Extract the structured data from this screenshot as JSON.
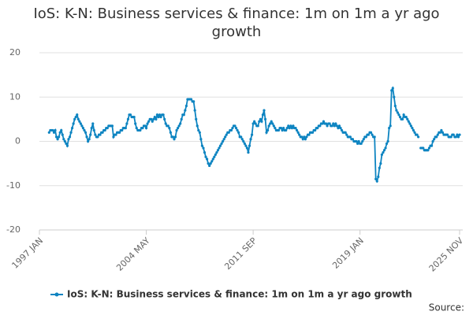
{
  "chart_data": {
    "type": "line",
    "title": "IoS: K-N: Business services & finance: 1m on 1m a yr ago growth",
    "source": "Source:",
    "categories": [
      "1997 JAN",
      null,
      null,
      null,
      null,
      null,
      null,
      null,
      null,
      null,
      null,
      null,
      null,
      null,
      null,
      null,
      null,
      null,
      null,
      null,
      null,
      null,
      null,
      null,
      null,
      null,
      null,
      null,
      null,
      null,
      null,
      null,
      null,
      null,
      null,
      null,
      null,
      null,
      null,
      null,
      null,
      null,
      null,
      null,
      null,
      null,
      null,
      null,
      null,
      null,
      null,
      null,
      null,
      null,
      null,
      null,
      null,
      null,
      null,
      null,
      null,
      null,
      null,
      null,
      null,
      null,
      null,
      null,
      null,
      null,
      null,
      null,
      null,
      null,
      null,
      null,
      null,
      null,
      null,
      null,
      null,
      null,
      null,
      null,
      null,
      null,
      null,
      null,
      "2004 MAY",
      null,
      null,
      null,
      null,
      null,
      null,
      null,
      null,
      null,
      null,
      null,
      null,
      null,
      null,
      null,
      null,
      null,
      null,
      null,
      null,
      null,
      null,
      null,
      null,
      null,
      null,
      null,
      null,
      null,
      null,
      null,
      null,
      null,
      null,
      null,
      null,
      null,
      null,
      null,
      null,
      null,
      null,
      null,
      null,
      null,
      null,
      null,
      null,
      null,
      null,
      null,
      null,
      null,
      null,
      null,
      null,
      null,
      null,
      null,
      null,
      null,
      null,
      null,
      null,
      null,
      null,
      null,
      null,
      null,
      null,
      null,
      null,
      null,
      null,
      null,
      null,
      null,
      null,
      null,
      null,
      null,
      null,
      null,
      null,
      null,
      null,
      null,
      "2011 SEP",
      null,
      null,
      null,
      null,
      null,
      null,
      null,
      null,
      null,
      null,
      null,
      null,
      null,
      null,
      null,
      null,
      null,
      null,
      null,
      null,
      null,
      null,
      null,
      null,
      null,
      null,
      null,
      null,
      null,
      null,
      null,
      null,
      null,
      null,
      null,
      null,
      null,
      null,
      null,
      null,
      null,
      null,
      null,
      null,
      null,
      null,
      null,
      null,
      null,
      null,
      null,
      null,
      null,
      null,
      null,
      null,
      null,
      null,
      null,
      null,
      null,
      null,
      null,
      null,
      null,
      null,
      null,
      null,
      null,
      null,
      null,
      null,
      null,
      null,
      null,
      null,
      null,
      null,
      null,
      null,
      null,
      null,
      null,
      null,
      null,
      null,
      null,
      "2019 JAN",
      null,
      null,
      null,
      null,
      null,
      null,
      null,
      null,
      null,
      null,
      null,
      null,
      null,
      null,
      null,
      null,
      null,
      null,
      null,
      null,
      null,
      null,
      null,
      null,
      null,
      null,
      null,
      null,
      null,
      null,
      null,
      null,
      null,
      null,
      null,
      null,
      null,
      null,
      null,
      null,
      null,
      null,
      null,
      null,
      null,
      null,
      null,
      null,
      null,
      null,
      null,
      null,
      null,
      null,
      null,
      null,
      null,
      null,
      null,
      null,
      null,
      null,
      null,
      null,
      null,
      null,
      null,
      null,
      null,
      null,
      null,
      null,
      null,
      null,
      null,
      null,
      null,
      null,
      null,
      null,
      null,
      "2025 NOV"
    ],
    "series": [
      {
        "name": "IoS: K-N: Business services & finance: 1m on 1m a yr ago growth",
        "color": "#0d84c1",
        "values": [
          null,
          null,
          null,
          null,
          null,
          null,
          null,
          null,
          2,
          2.5,
          2.5,
          2.5,
          2,
          2.5,
          1,
          0.5,
          1,
          2,
          2.5,
          1.5,
          0.5,
          0,
          -0.5,
          -1,
          0.5,
          1,
          2,
          3,
          4,
          5,
          5.5,
          6,
          5,
          4.5,
          4,
          3.5,
          3,
          2.5,
          2,
          1,
          0,
          0.5,
          1.5,
          3,
          4,
          2.5,
          1.5,
          1,
          1,
          1.5,
          1.5,
          2,
          2,
          2.5,
          2.5,
          3,
          3,
          3.5,
          3.5,
          3.5,
          3.5,
          1,
          1.5,
          1.5,
          2,
          2,
          2,
          2.5,
          2.5,
          3,
          3,
          3,
          4,
          5,
          6,
          6,
          5.5,
          5.5,
          5.5,
          4,
          3,
          2.5,
          2.5,
          2.5,
          3,
          3,
          3.5,
          3.5,
          3,
          4,
          4.5,
          5,
          5,
          4.5,
          5,
          5.5,
          5,
          6,
          5.5,
          6,
          5.5,
          6,
          6,
          5,
          4,
          3.5,
          3.5,
          3,
          2,
          1,
          1,
          0.5,
          1,
          2.5,
          3,
          3.5,
          4,
          5,
          6,
          6,
          7,
          8,
          9.5,
          9.5,
          9.5,
          9.5,
          9,
          9,
          7,
          5,
          3.5,
          2.5,
          2,
          0.5,
          -1,
          -1.5,
          -2.5,
          -3.5,
          -4,
          -5,
          -5.5,
          -5,
          -4.5,
          -4,
          -3.5,
          -3,
          -2.5,
          -2,
          -1.5,
          -1,
          -0.5,
          0,
          0.5,
          1,
          1.5,
          2,
          2,
          2.5,
          2.5,
          3,
          3.5,
          3.5,
          3,
          2.5,
          2,
          1,
          1,
          0.5,
          0,
          -0.5,
          -1,
          -1.5,
          -2.5,
          -1,
          0.5,
          1.5,
          4,
          4.5,
          4,
          3.5,
          3.5,
          4.5,
          5,
          4.5,
          6,
          7,
          5,
          2,
          2.5,
          3.5,
          4,
          4.5,
          4,
          3.5,
          3,
          2.5,
          2.5,
          2.5,
          3,
          3,
          2.5,
          3,
          2.5,
          2.5,
          3,
          3.5,
          3,
          3.5,
          3,
          3.5,
          3,
          3,
          2.5,
          2,
          1.5,
          1,
          1,
          0.5,
          1,
          0.5,
          1,
          1.5,
          1.5,
          2,
          2,
          2,
          2.5,
          2.5,
          3,
          3,
          3.5,
          3.5,
          4,
          4,
          4.5,
          4,
          4,
          3.5,
          4,
          4,
          3.5,
          3.5,
          4,
          3.5,
          4,
          3.5,
          3,
          3.5,
          3,
          2.5,
          2,
          2,
          2,
          1.5,
          1,
          1,
          1,
          0.5,
          0.5,
          0,
          0,
          0,
          -0.5,
          0,
          -0.5,
          -0.5,
          0,
          0.5,
          1,
          1,
          1.5,
          1.5,
          2,
          2,
          1.5,
          1,
          1,
          -8.5,
          -9,
          -8,
          -6,
          -5,
          -3,
          -2.5,
          -2,
          -1.5,
          -0.5,
          0,
          3,
          3.5,
          11.5,
          12,
          10,
          8,
          7,
          6.5,
          6,
          5.5,
          5,
          5,
          6,
          5.5,
          5.5,
          5,
          4.5,
          4,
          3.5,
          3,
          2.5,
          2,
          1.5,
          1.5,
          1,
          null,
          -1.5,
          -1.5,
          -1.5,
          -2,
          -2,
          -2,
          -2,
          -1.5,
          -1,
          -1,
          0,
          0.5,
          1,
          1,
          1.5,
          2,
          2,
          2.5,
          2,
          1.5,
          1.5,
          1.5,
          1.5,
          1,
          1,
          1,
          1.5,
          1.5,
          1,
          1,
          1.5,
          1,
          1.5
        ]
      }
    ],
    "ylim": [
      -20,
      20
    ],
    "yticks": [
      -20,
      -10,
      0,
      10,
      20
    ],
    "grid": true,
    "legend": "bottom"
  }
}
